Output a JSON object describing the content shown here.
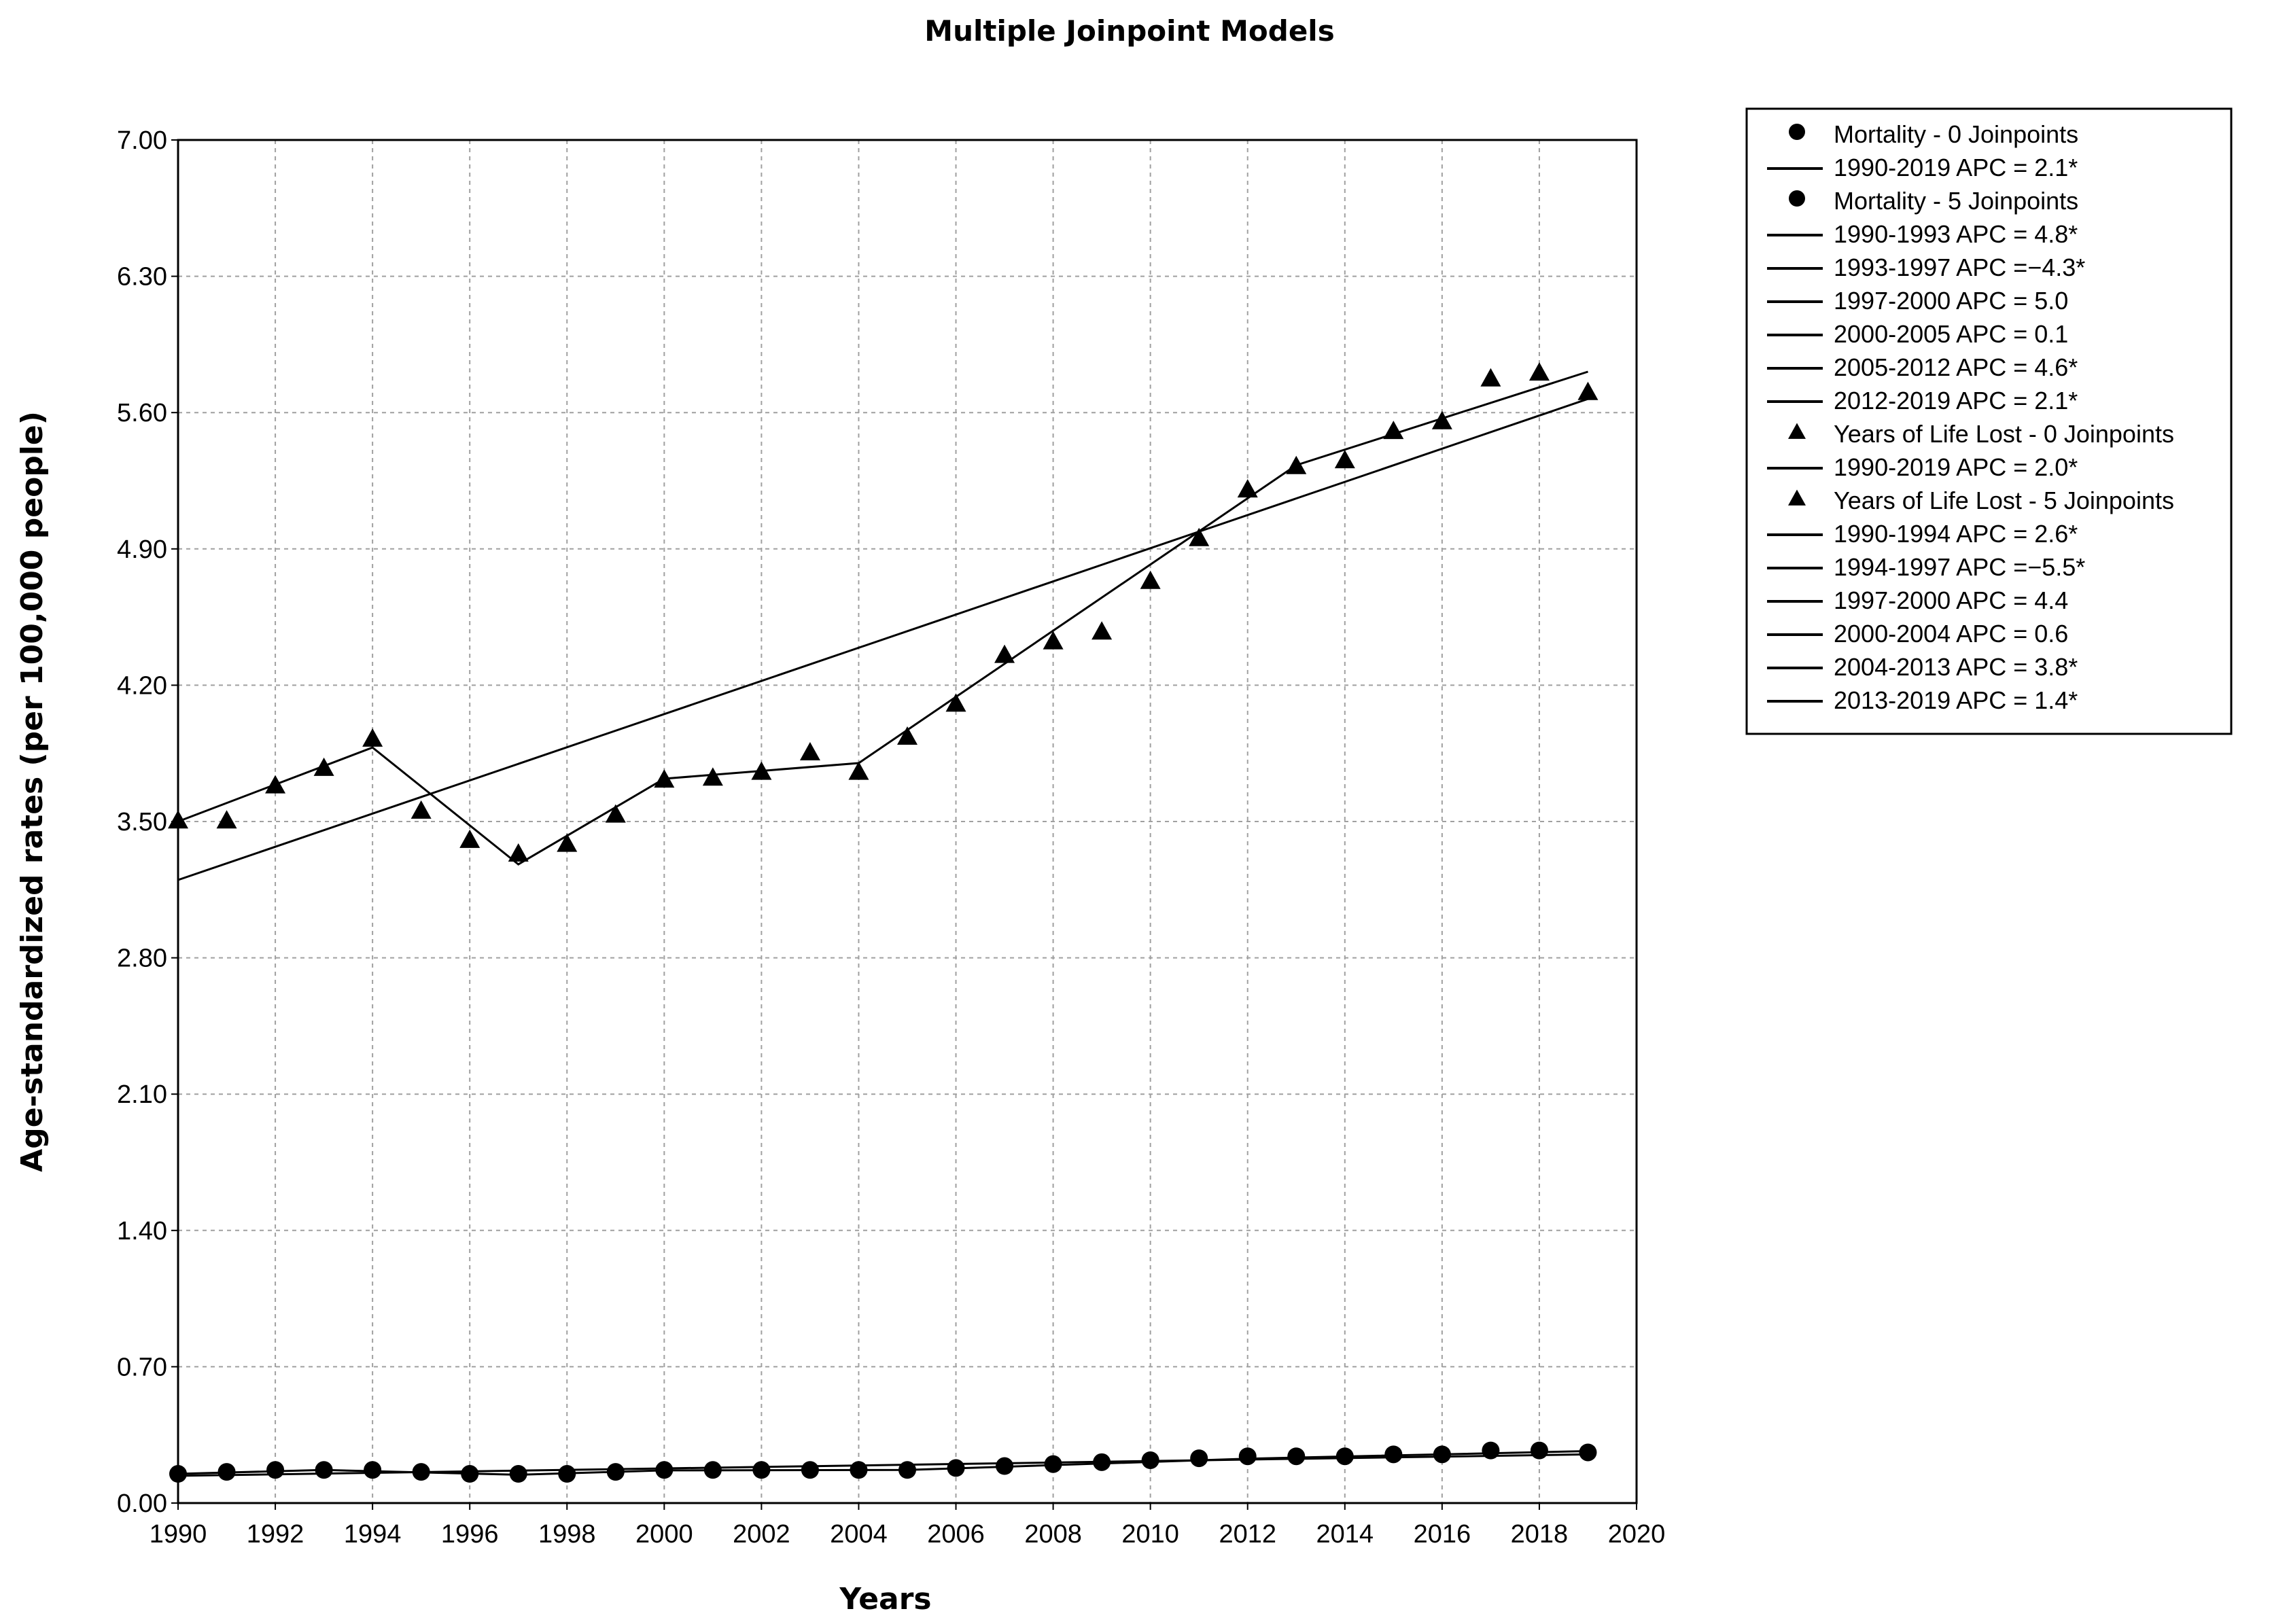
{
  "chart_data": {
    "type": "line",
    "title": "Multiple Joinpoint Models",
    "xlabel": "Years",
    "ylabel": "Age-standardized rates (per 100,000 people)",
    "xlim": [
      1990,
      2020
    ],
    "ylim": [
      0.0,
      7.0
    ],
    "x_ticks": [
      "1990",
      "1992",
      "1994",
      "1996",
      "1998",
      "2000",
      "2002",
      "2004",
      "2006",
      "2008",
      "2010",
      "2012",
      "2014",
      "2016",
      "2018",
      "2020"
    ],
    "y_ticks": [
      "0.00",
      "0.70",
      "1.40",
      "2.10",
      "2.80",
      "3.50",
      "4.20",
      "4.90",
      "5.60",
      "6.30",
      "7.00"
    ],
    "grid": true,
    "legend_position": "right",
    "x": [
      1990,
      1991,
      1992,
      1993,
      1994,
      1995,
      1996,
      1997,
      1998,
      1999,
      2000,
      2001,
      2002,
      2003,
      2004,
      2005,
      2006,
      2007,
      2008,
      2009,
      2010,
      2011,
      2012,
      2013,
      2014,
      2015,
      2016,
      2017,
      2018,
      2019
    ],
    "observed": [
      {
        "name": "Mortality",
        "marker": "circle",
        "values": [
          0.15,
          0.16,
          0.17,
          0.17,
          0.17,
          0.16,
          0.15,
          0.15,
          0.15,
          0.16,
          0.17,
          0.17,
          0.17,
          0.17,
          0.17,
          0.17,
          0.18,
          0.19,
          0.2,
          0.21,
          0.22,
          0.23,
          0.24,
          0.24,
          0.24,
          0.25,
          0.25,
          0.27,
          0.27,
          0.26
        ]
      },
      {
        "name": "Years of Life Lost",
        "marker": "triangle",
        "values": [
          3.5,
          3.5,
          3.68,
          3.77,
          3.92,
          3.55,
          3.4,
          3.33,
          3.38,
          3.53,
          3.71,
          3.72,
          3.75,
          3.85,
          3.75,
          3.93,
          4.1,
          4.35,
          4.42,
          4.47,
          4.73,
          4.95,
          5.2,
          5.32,
          5.35,
          5.5,
          5.55,
          5.77,
          5.8,
          5.7
        ]
      }
    ],
    "fits": [
      {
        "name": "Mortality - 0 Joinpoints",
        "x": [
          1990,
          2019
        ],
        "y": [
          0.14,
          0.25
        ]
      },
      {
        "name": "Mortality - 5 Joinpoints",
        "x": [
          1990,
          1993,
          1997,
          2000,
          2005,
          2012,
          2019
        ],
        "y": [
          0.15,
          0.17,
          0.145,
          0.168,
          0.17,
          0.228,
          0.267
        ]
      },
      {
        "name": "Years of Life Lost - 0 Joinpoints",
        "x": [
          1990,
          2019
        ],
        "y": [
          3.2,
          5.67
        ]
      },
      {
        "name": "Years of Life Lost - 5 Joinpoints",
        "x": [
          1990,
          1994,
          1997,
          2000,
          2004,
          2013,
          2019
        ],
        "y": [
          3.5,
          3.88,
          3.28,
          3.72,
          3.8,
          5.33,
          5.81
        ]
      }
    ],
    "legend": [
      {
        "type": "circle",
        "text": "Mortality - 0 Joinpoints"
      },
      {
        "type": "line",
        "text": "1990-2019 APC  = 2.1*"
      },
      {
        "type": "circle",
        "text": "Mortality - 5 Joinpoints"
      },
      {
        "type": "line",
        "text": "1990-1993 APC  = 4.8*"
      },
      {
        "type": "line",
        "text": "1993-1997 APC  =−4.3*"
      },
      {
        "type": "line",
        "text": "1997-2000 APC  = 5.0"
      },
      {
        "type": "line",
        "text": "2000-2005 APC  = 0.1"
      },
      {
        "type": "line",
        "text": "2005-2012 APC  = 4.6*"
      },
      {
        "type": "line",
        "text": "2012-2019 APC  = 2.1*"
      },
      {
        "type": "triangle",
        "text": "Years of Life Lost - 0 Joinpoints"
      },
      {
        "type": "line",
        "text": "1990-2019 APC  = 2.0*"
      },
      {
        "type": "triangle",
        "text": "Years of Life Lost - 5 Joinpoints"
      },
      {
        "type": "line",
        "text": "1990-1994 APC  = 2.6*"
      },
      {
        "type": "line",
        "text": "1994-1997 APC  =−5.5*"
      },
      {
        "type": "line",
        "text": "1997-2000 APC  = 4.4"
      },
      {
        "type": "line",
        "text": "2000-2004 APC  = 0.6"
      },
      {
        "type": "line",
        "text": "2004-2013 APC  = 3.8*"
      },
      {
        "type": "line",
        "text": "2013-2019 APC  = 1.4*"
      }
    ],
    "colors": {
      "marks": "#000000",
      "grid": "#a0a0a0",
      "background": "#ffffff"
    }
  }
}
